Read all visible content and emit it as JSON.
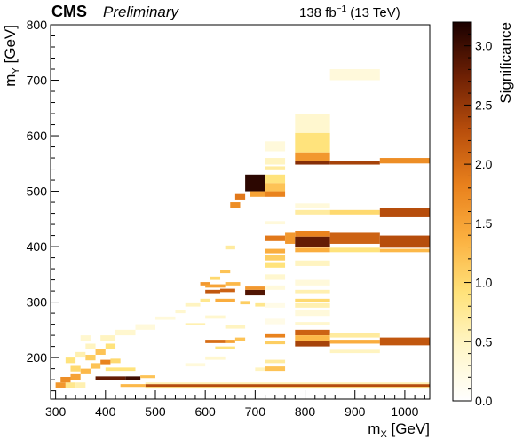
{
  "header": {
    "experiment": "CMS",
    "status": "Preliminary",
    "luminosity": "138 fb",
    "lumi_exponent": "−1",
    "energy": " (13 TeV)"
  },
  "chart_data": {
    "type": "heatmap",
    "xlabel": "m",
    "xlabel_sub": "X",
    "xlabel_unit": " [GeV]",
    "ylabel": "m",
    "ylabel_sub": "Y",
    "ylabel_unit": " [GeV]",
    "zlabel": "Significance",
    "xlim": [
      290,
      1050
    ],
    "ylim": [
      125,
      800
    ],
    "zlim": [
      0,
      3.2
    ],
    "x_ticks": [
      300,
      400,
      500,
      600,
      700,
      800,
      900,
      1000
    ],
    "y_ticks": [
      200,
      300,
      400,
      500,
      600,
      700,
      800
    ],
    "z_ticks": [
      0.0,
      0.5,
      1.0,
      1.5,
      2.0,
      2.5,
      3.0
    ],
    "z_tick_labels": [
      "0.0",
      "0.5",
      "1.0",
      "1.5",
      "2.0",
      "2.5",
      "3.0"
    ],
    "colormap": [
      "#ffffff",
      "#fff6c8",
      "#ffe27a",
      "#fbb040",
      "#e8801c",
      "#b84e0c",
      "#6e2004",
      "#1a0000"
    ],
    "cells": [
      [
        300,
        320,
        145,
        155,
        1.6
      ],
      [
        320,
        340,
        145,
        155,
        0.8
      ],
      [
        340,
        360,
        145,
        155,
        0.6
      ],
      [
        310,
        330,
        155,
        165,
        1.7
      ],
      [
        330,
        350,
        160,
        170,
        1.5
      ],
      [
        350,
        370,
        170,
        180,
        1.3
      ],
      [
        370,
        390,
        180,
        190,
        1.2
      ],
      [
        390,
        410,
        188,
        196,
        1.8
      ],
      [
        410,
        430,
        190,
        198,
        1.0
      ],
      [
        330,
        350,
        175,
        185,
        1.0
      ],
      [
        360,
        380,
        195,
        205,
        1.1
      ],
      [
        380,
        400,
        205,
        215,
        1.2
      ],
      [
        400,
        420,
        215,
        225,
        0.9
      ],
      [
        340,
        360,
        200,
        210,
        0.6
      ],
      [
        360,
        380,
        215,
        225,
        0.5
      ],
      [
        390,
        420,
        230,
        240,
        0.5
      ],
      [
        420,
        460,
        240,
        250,
        0.4
      ],
      [
        460,
        500,
        250,
        260,
        0.3
      ],
      [
        380,
        440,
        160,
        166,
        2.8
      ],
      [
        440,
        470,
        160,
        166,
        3.0
      ],
      [
        470,
        500,
        163,
        168,
        1.2
      ],
      [
        400,
        460,
        176,
        182,
        0.9
      ],
      [
        320,
        340,
        190,
        200,
        0.9
      ],
      [
        350,
        370,
        230,
        240,
        0.4
      ],
      [
        500,
        540,
        268,
        274,
        0.3
      ],
      [
        540,
        560,
        280,
        286,
        0.4
      ],
      [
        560,
        590,
        292,
        298,
        0.5
      ],
      [
        590,
        610,
        300,
        306,
        0.8
      ],
      [
        610,
        630,
        340,
        346,
        1.0
      ],
      [
        630,
        650,
        352,
        358,
        1.2
      ],
      [
        650,
        670,
        470,
        480,
        1.7
      ],
      [
        660,
        680,
        485,
        495,
        1.9
      ],
      [
        640,
        660,
        395,
        402,
        0.7
      ],
      [
        590,
        610,
        330,
        336,
        1.6
      ],
      [
        600,
        630,
        316,
        322,
        2.2
      ],
      [
        630,
        660,
        318,
        324,
        2.1
      ],
      [
        600,
        640,
        326,
        332,
        1.5
      ],
      [
        640,
        670,
        330,
        336,
        1.3
      ],
      [
        680,
        720,
        312,
        322,
        2.9
      ],
      [
        680,
        720,
        322,
        328,
        1.6
      ],
      [
        670,
        690,
        296,
        302,
        1.1
      ],
      [
        700,
        720,
        292,
        298,
        0.8
      ],
      [
        620,
        660,
        300,
        306,
        1.4
      ],
      [
        560,
        600,
        258,
        262,
        0.6
      ],
      [
        600,
        640,
        226,
        232,
        2.0
      ],
      [
        640,
        660,
        226,
        232,
        1.5
      ],
      [
        660,
        680,
        230,
        236,
        1.2
      ],
      [
        620,
        660,
        215,
        220,
        0.9
      ],
      [
        680,
        720,
        500,
        530,
        3.1
      ],
      [
        690,
        720,
        490,
        500,
        1.5
      ],
      [
        720,
        760,
        490,
        500,
        1.8
      ],
      [
        720,
        760,
        500,
        515,
        1.2
      ],
      [
        720,
        760,
        515,
        530,
        0.9
      ],
      [
        720,
        760,
        538,
        545,
        0.7
      ],
      [
        720,
        760,
        548,
        560,
        0.5
      ],
      [
        720,
        760,
        572,
        590,
        0.3
      ],
      [
        720,
        760,
        440,
        446,
        0.3
      ],
      [
        720,
        760,
        410,
        420,
        1.9
      ],
      [
        760,
        780,
        405,
        425,
        1.6
      ],
      [
        720,
        760,
        388,
        396,
        1.4
      ],
      [
        720,
        760,
        375,
        385,
        1.1
      ],
      [
        720,
        760,
        362,
        372,
        0.9
      ],
      [
        720,
        760,
        340,
        350,
        0.4
      ],
      [
        720,
        760,
        322,
        330,
        0.3
      ],
      [
        720,
        760,
        236,
        242,
        1.8
      ],
      [
        720,
        760,
        224,
        230,
        1.1
      ],
      [
        720,
        760,
        190,
        196,
        0.7
      ],
      [
        720,
        760,
        176,
        184,
        1.2
      ],
      [
        720,
        760,
        260,
        270,
        0.2
      ],
      [
        720,
        760,
        290,
        298,
        0.2
      ],
      [
        780,
        850,
        605,
        640,
        0.4
      ],
      [
        780,
        850,
        570,
        605,
        0.9
      ],
      [
        780,
        850,
        555,
        570,
        1.6
      ],
      [
        780,
        850,
        548,
        555,
        2.6
      ],
      [
        850,
        950,
        548,
        555,
        2.4
      ],
      [
        950,
        1050,
        550,
        560,
        1.7
      ],
      [
        780,
        850,
        470,
        478,
        0.3
      ],
      [
        780,
        850,
        458,
        466,
        0.7
      ],
      [
        850,
        950,
        458,
        466,
        1.0
      ],
      [
        950,
        1050,
        453,
        470,
        2.3
      ],
      [
        780,
        850,
        418,
        428,
        1.8
      ],
      [
        780,
        850,
        400,
        418,
        2.8
      ],
      [
        850,
        950,
        405,
        425,
        2.1
      ],
      [
        950,
        1050,
        398,
        420,
        2.3
      ],
      [
        780,
        850,
        390,
        398,
        1.4
      ],
      [
        850,
        950,
        390,
        398,
        0.9
      ],
      [
        950,
        1050,
        390,
        396,
        1.3
      ],
      [
        780,
        850,
        365,
        375,
        0.5
      ],
      [
        780,
        850,
        330,
        340,
        0.3
      ],
      [
        780,
        850,
        316,
        322,
        0.6
      ],
      [
        780,
        850,
        300,
        306,
        1.0
      ],
      [
        780,
        850,
        290,
        298,
        0.6
      ],
      [
        780,
        850,
        275,
        285,
        0.3
      ],
      [
        780,
        850,
        240,
        250,
        2.1
      ],
      [
        780,
        850,
        230,
        240,
        1.3
      ],
      [
        850,
        950,
        236,
        244,
        0.7
      ],
      [
        780,
        850,
        220,
        230,
        2.4
      ],
      [
        850,
        950,
        225,
        232,
        1.4
      ],
      [
        950,
        1050,
        222,
        236,
        2.2
      ],
      [
        850,
        950,
        208,
        214,
        0.5
      ],
      [
        850,
        950,
        700,
        720,
        0.3
      ],
      [
        780,
        850,
        258,
        264,
        0.4
      ],
      [
        480,
        1050,
        147,
        152,
        2.3
      ],
      [
        480,
        1050,
        144,
        147,
        0.9
      ],
      [
        480,
        1050,
        152,
        155,
        0.6
      ],
      [
        430,
        480,
        147,
        152,
        1.3
      ],
      [
        560,
        600,
        184,
        190,
        0.3
      ],
      [
        600,
        640,
        196,
        202,
        0.4
      ],
      [
        700,
        720,
        176,
        182,
        0.5
      ],
      [
        640,
        680,
        252,
        258,
        0.5
      ],
      [
        600,
        640,
        270,
        276,
        0.4
      ]
    ]
  }
}
